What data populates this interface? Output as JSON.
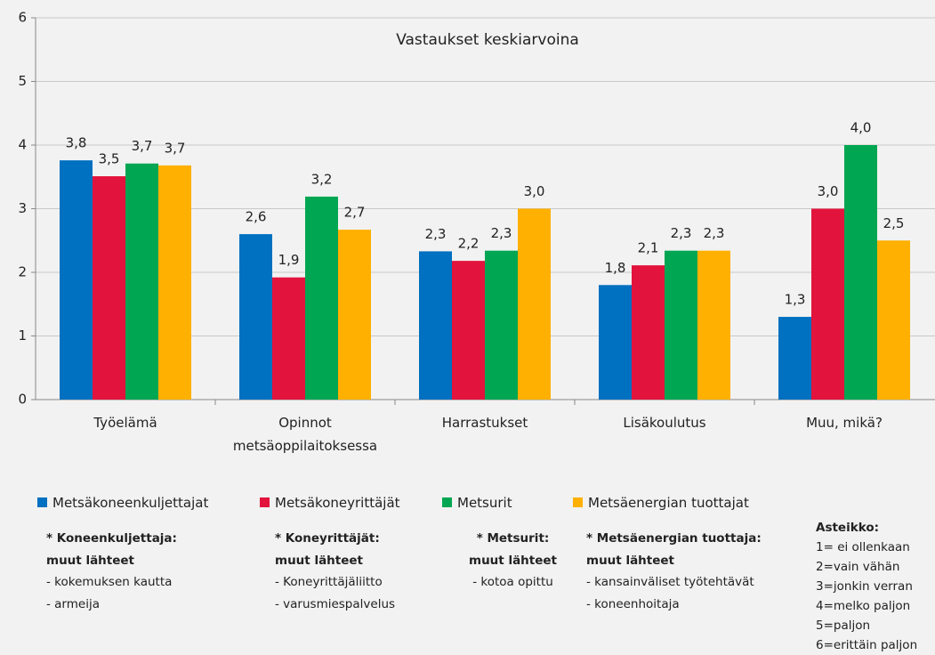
{
  "chart_data": {
    "type": "bar",
    "title": "Vastaukset keskiarvoina",
    "categories": [
      "Työelämä",
      "Opinnot metsäoppilaitoksessa",
      "Harrastukset",
      "Lisäkoulutus",
      "Muu, mikä?"
    ],
    "series": [
      {
        "name": "Metsäkoneenkuljettajat",
        "color": "#0070c0",
        "values": [
          3.76,
          2.6,
          2.33,
          1.8,
          1.3
        ],
        "value_labels": [
          "3,8",
          "2,6",
          "2,3",
          "1,8",
          "1,3"
        ]
      },
      {
        "name": "Metsäkoneyrittäjät",
        "color": "#e2133c",
        "values": [
          3.51,
          1.92,
          2.18,
          2.11,
          3.0
        ],
        "value_labels": [
          "3,5",
          "1,9",
          "2,2",
          "2,1",
          "3,0"
        ]
      },
      {
        "name": "Metsurit",
        "color": "#00a651",
        "values": [
          3.71,
          3.19,
          2.34,
          2.34,
          4.0
        ],
        "value_labels": [
          "3,7",
          "3,2",
          "2,3",
          "2,3",
          "4,0"
        ]
      },
      {
        "name": "Metsäenergian tuottajat",
        "color": "#ffb000",
        "values": [
          3.68,
          2.67,
          3.0,
          2.34,
          2.5
        ],
        "value_labels": [
          "3,7",
          "2,7",
          "3,0",
          "2,3",
          "2,5"
        ]
      }
    ],
    "ylim": [
      0,
      6
    ],
    "yticks": [
      0,
      1,
      2,
      3,
      4,
      5,
      6
    ],
    "grid": true
  },
  "notes": [
    {
      "heading": [
        "* Koneenkuljettaja:",
        "muut lähteet"
      ],
      "items": [
        "- kokemuksen kautta",
        "- armeija"
      ]
    },
    {
      "heading": [
        "* Koneyrittäjät:",
        "muut lähteet"
      ],
      "items": [
        "- Koneyrittäjäliitto",
        "- varusmiespalvelus"
      ]
    },
    {
      "heading": [
        "* Metsurit:",
        "muut lähteet"
      ],
      "items": [
        "- kotoa opittu"
      ]
    },
    {
      "heading": [
        "* Metsäenergian tuottaja:",
        "muut lähteet"
      ],
      "items": [
        "- kansainväliset työtehtävät",
        "- koneenhoitaja"
      ]
    }
  ],
  "scale": {
    "title": "Asteikko:",
    "items": [
      "1= ei ollenkaan",
      "2=vain vähän",
      "3=jonkin verran",
      "4=melko paljon",
      "5=paljon",
      "6=erittäin paljon"
    ]
  }
}
